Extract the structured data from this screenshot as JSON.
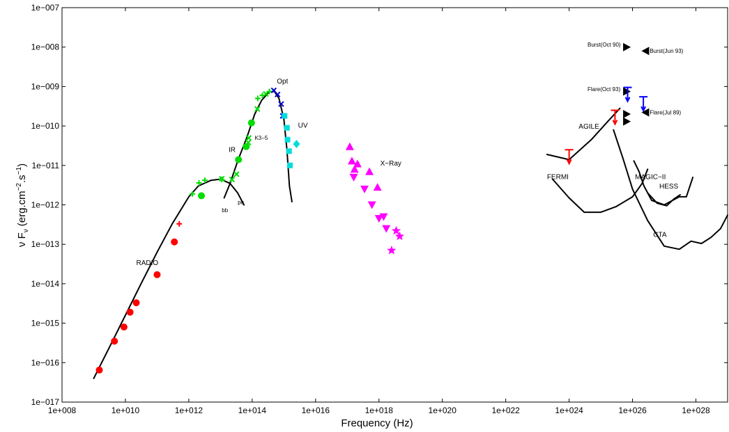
{
  "chart_data": {
    "type": "scatter",
    "title": "",
    "xlabel": "Frequency (Hz)",
    "ylabel": "ν F",
    "ylabel_sub": "ν",
    "ylabel_units": "(erg.cm",
    "ylabel_exp1": "−2",
    "ylabel_mid": ".s",
    "ylabel_exp2": "−1",
    "ylabel_end": ")",
    "x_scale": "log",
    "y_scale": "log",
    "xlim": [
      100000000.0,
      1e+29
    ],
    "ylim": [
      1e-17,
      1e-07
    ],
    "grid": false,
    "x_ticks": [
      {
        "v": 100000000.0,
        "label": "1e+008"
      },
      {
        "v": 10000000000.0,
        "label": "1e+010"
      },
      {
        "v": 1000000000000.0,
        "label": "1e+012"
      },
      {
        "v": 100000000000000.0,
        "label": "1e+014"
      },
      {
        "v": 1e+16,
        "label": "1e+016"
      },
      {
        "v": 1e+18,
        "label": "1e+018"
      },
      {
        "v": 1e+20,
        "label": "1e+020"
      },
      {
        "v": 1e+22,
        "label": "1e+022"
      },
      {
        "v": 1e+24,
        "label": "1e+024"
      },
      {
        "v": 1e+26,
        "label": "1e+026"
      },
      {
        "v": 1e+28,
        "label": "1e+028"
      }
    ],
    "y_ticks": [
      {
        "v": 1e-17,
        "label": "1e−017"
      },
      {
        "v": 1e-16,
        "label": "1e−016"
      },
      {
        "v": 1e-15,
        "label": "1e−015"
      },
      {
        "v": 1e-14,
        "label": "1e−014"
      },
      {
        "v": 1e-13,
        "label": "1e−013"
      },
      {
        "v": 1e-12,
        "label": "1e−012"
      },
      {
        "v": 1e-11,
        "label": "1e−011"
      },
      {
        "v": 1e-10,
        "label": "1e−010"
      },
      {
        "v": 1e-09,
        "label": "1e−009"
      },
      {
        "v": 1e-08,
        "label": "1e−008"
      },
      {
        "v": 1e-07,
        "label": "1e−007"
      }
    ],
    "series": [
      {
        "marker": "circle",
        "color": "#ff0000",
        "points": [
          [
            1500000000.0,
            6.5e-17
          ],
          [
            4500000000.0,
            3.5e-16
          ],
          [
            9000000000.0,
            8e-16
          ],
          [
            14000000000.0,
            1.9e-15
          ],
          [
            22000000000.0,
            3.3e-15
          ],
          [
            100000000000.0,
            1.7e-14
          ],
          [
            350000000000.0,
            1.15e-13
          ]
        ]
      },
      {
        "marker": "plus",
        "color": "#ff0000",
        "points": [
          [
            500000000000.0,
            3.3e-13
          ]
        ]
      },
      {
        "marker": "circle",
        "color": "#00dd00",
        "points": [
          [
            2500000000000.0,
            1.7e-12
          ],
          [
            37000000000000.0,
            1.4e-11
          ],
          [
            65000000000000.0,
            3e-11
          ],
          [
            95000000000000.0,
            1.2e-10
          ]
        ]
      },
      {
        "marker": "plus",
        "color": "#00dd00",
        "points": [
          [
            1300000000000.0,
            1.9e-12
          ],
          [
            2100000000000.0,
            3.6e-12
          ],
          [
            3200000000000.0,
            4.2e-12
          ],
          [
            11000000000000.0,
            4.4e-12
          ],
          [
            150000000000000.0,
            5e-10
          ],
          [
            210000000000000.0,
            6e-10
          ],
          [
            350000000000000.0,
            7.5e-10
          ]
        ]
      },
      {
        "marker": "x",
        "color": "#00dd00",
        "points": [
          [
            11000000000000.0,
            4.6e-12
          ],
          [
            23000000000000.0,
            4.4e-12
          ],
          [
            32000000000000.0,
            6e-12
          ],
          [
            75000000000000.0,
            3.8e-11
          ],
          [
            78000000000000.0,
            5e-11
          ],
          [
            95000000000000.0,
            1.2e-10
          ],
          [
            145000000000000.0,
            2.7e-10
          ],
          [
            270000000000000.0,
            6.5e-10
          ]
        ]
      },
      {
        "marker": "x",
        "color": "#0000cc",
        "points": [
          [
            480000000000000.0,
            8e-10
          ],
          [
            630000000000000.0,
            6.3e-10
          ],
          [
            820000000000000.0,
            3.6e-10
          ],
          [
            920000000000000.0,
            1.8e-10
          ]
        ]
      },
      {
        "marker": "square",
        "color": "#00dddd",
        "points": [
          [
            1050000000000000.0,
            1.8e-10
          ],
          [
            1250000000000000.0,
            9e-11
          ],
          [
            1300000000000000.0,
            4.5e-11
          ],
          [
            1450000000000000.0,
            2.3e-11
          ],
          [
            1550000000000000.0,
            1e-11
          ]
        ]
      },
      {
        "marker": "diamond",
        "color": "#00dddd",
        "points": [
          [
            2500000000000000.0,
            3.5e-11
          ]
        ]
      },
      {
        "marker": "triangle-up",
        "color": "#ff00ff",
        "points": [
          [
            1.2e+17,
            3e-11
          ],
          [
            1.4e+17,
            1.3e-11
          ],
          [
            1.7e+17,
            8e-12
          ],
          [
            2.1e+17,
            1.1e-11
          ],
          [
            5e+17,
            7e-12
          ],
          [
            9e+17,
            2.8e-12
          ]
        ]
      },
      {
        "marker": "triangle-down",
        "color": "#ff00ff",
        "points": [
          [
            1.6e+17,
            5e-12
          ],
          [
            3.5e+17,
            2.5e-12
          ],
          [
            6e+17,
            1e-12
          ],
          [
            1e+18,
            4.5e-13
          ],
          [
            1.4e+18,
            5e-13
          ],
          [
            1.7e+18,
            2.5e-13
          ]
        ]
      },
      {
        "marker": "star",
        "color": "#ff00ff",
        "points": [
          [
            2.5e+18,
            7e-14
          ],
          [
            3.5e+18,
            2.2e-13
          ],
          [
            4.5e+18,
            1.6e-13
          ]
        ]
      },
      {
        "marker": "triangle-right",
        "color": "#000000",
        "points": [
          [
            6.5e+25,
            1e-08
          ],
          [
            6.5e+25,
            7.5e-10
          ],
          [
            6.5e+25,
            2e-10
          ],
          [
            6.5e+25,
            1.3e-10
          ]
        ]
      },
      {
        "marker": "triangle-left",
        "color": "#000000",
        "points": [
          [
            2.6e+26,
            8e-09
          ],
          [
            2.6e+26,
            2.2e-10
          ]
        ]
      },
      {
        "marker": "upper-limit",
        "color": "#ff0000",
        "points": [
          [
            2.8e+25,
            2.5e-10
          ],
          [
            1e+24,
            2.5e-11
          ]
        ]
      },
      {
        "marker": "upper-limit",
        "color": "#0000ff",
        "points": [
          [
            7e+25,
            9.5e-10
          ],
          [
            2.2e+26,
            5.5e-10
          ]
        ]
      }
    ],
    "curves": [
      {
        "name": "synchrotron",
        "points": [
          [
            1000000000.0,
            4e-17
          ],
          [
            3000000000.0,
            2.3e-16
          ],
          [
            10000000000.0,
            1.6e-15
          ],
          [
            30000000000.0,
            9.5e-15
          ],
          [
            100000000000.0,
            6.3e-14
          ],
          [
            300000000000.0,
            3.3e-13
          ],
          [
            1000000000000.0,
            1.6e-12
          ],
          [
            2000000000000.0,
            3e-12
          ],
          [
            5000000000000.0,
            4.2e-12
          ],
          [
            10000000000000.0,
            4.5e-12
          ],
          [
            20000000000000.0,
            3.5e-12
          ],
          [
            35000000000000.0,
            2e-12
          ],
          [
            55000000000000.0,
            1e-12
          ]
        ]
      },
      {
        "name": "bb",
        "points": [
          [
            13000000000000.0,
            1.5e-12
          ],
          [
            20000000000000.0,
            3.5e-12
          ],
          [
            35000000000000.0,
            1.3e-11
          ],
          [
            70000000000000.0,
            5.5e-11
          ],
          [
            120000000000000.0,
            2e-10
          ],
          [
            200000000000000.0,
            4.5e-10
          ],
          [
            350000000000000.0,
            7.5e-10
          ],
          [
            500000000000000.0,
            7.5e-10
          ],
          [
            700000000000000.0,
            5e-10
          ],
          [
            1000000000000000.0,
            1.5e-10
          ],
          [
            1250000000000000.0,
            2.5e-11
          ],
          [
            1500000000000000.0,
            3e-12
          ],
          [
            1800000000000000.0,
            1.2e-12
          ]
        ]
      },
      {
        "name": "AGILE",
        "points": [
          [
            2e+23,
            1.9e-11
          ],
          [
            1e+24,
            1.4e-11
          ],
          [
            5e+24,
            4.5e-11
          ],
          [
            1.8e+25,
            1.4e-10
          ],
          [
            4e+25,
            2.8e-10
          ]
        ]
      },
      {
        "name": "FERMI",
        "points": [
          [
            3e+23,
            4.5e-12
          ],
          [
            1e+24,
            1.5e-12
          ],
          [
            3e+24,
            6.5e-13
          ],
          [
            1e+25,
            6.5e-13
          ],
          [
            3e+25,
            9e-13
          ],
          [
            1e+26,
            1.6e-12
          ],
          [
            2e+26,
            3.5e-12
          ],
          [
            3e+26,
            8e-12
          ]
        ]
      },
      {
        "name": "CTA",
        "points": [
          [
            2.5e+25,
            8e-11
          ],
          [
            5e+25,
            1.5e-11
          ],
          [
            1e+26,
            2.5e-12
          ],
          [
            3e+26,
            4e-13
          ],
          [
            1e+27,
            9e-14
          ],
          [
            3e+27,
            7.5e-14
          ],
          [
            7e+27,
            1.2e-13
          ],
          [
            1.5e+28,
            1.05e-13
          ],
          [
            3e+28,
            1.5e-13
          ],
          [
            6e+28,
            2.5e-13
          ],
          [
            1e+29,
            5.5e-13
          ]
        ]
      },
      {
        "name": "MAGIC-II",
        "points": [
          [
            1.1e+26,
            1.3e-11
          ],
          [
            1.6e+26,
            7e-12
          ],
          [
            2.3e+26,
            3e-12
          ],
          [
            4e+26,
            1.3e-12
          ],
          [
            1e+27,
            1e-12
          ],
          [
            3e+27,
            1.6e-12
          ],
          [
            5e+27,
            1.6e-12
          ],
          [
            8e+27,
            5e-12
          ]
        ]
      },
      {
        "name": "HESS",
        "points": [
          [
            3e+26,
            2e-12
          ],
          [
            6e+26,
            1.1e-12
          ],
          [
            1.2e+27,
            9.5e-13
          ],
          [
            2e+27,
            1.4e-12
          ],
          [
            3.2e+27,
            1.8e-12
          ]
        ]
      }
    ],
    "annotations": [
      {
        "text": "Opt",
        "x": 600000000000000.0,
        "y": 1.2e-09,
        "size": "normal"
      },
      {
        "text": "UV",
        "x": 2800000000000000.0,
        "y": 9e-11,
        "size": "normal"
      },
      {
        "text": "K3−5",
        "x": 120000000000000.0,
        "y": 4.5e-11,
        "size": "small"
      },
      {
        "text": "IR",
        "x": 18000000000000.0,
        "y": 2.2e-11,
        "size": "normal"
      },
      {
        "text": "X−Ray",
        "x": 1.1e+18,
        "y": 1e-11,
        "size": "normal"
      },
      {
        "text": "RADIO",
        "x": 22000000000.0,
        "y": 3e-14,
        "size": "normal"
      },
      {
        "text": "bb",
        "x": 11000000000000.0,
        "y": 6.5e-13,
        "size": "small"
      },
      {
        "text": "po",
        "x": 35000000000000.0,
        "y": 1.05e-12,
        "size": "small"
      },
      {
        "text": "AGILE",
        "x": 2e+24,
        "y": 8.5e-11,
        "size": "normal"
      },
      {
        "text": "FERMI",
        "x": 2e+23,
        "y": 4.5e-12,
        "size": "normal"
      },
      {
        "text": "MAGIC−II",
        "x": 1.2e+26,
        "y": 4.5e-12,
        "size": "normal"
      },
      {
        "text": "HESS",
        "x": 7e+26,
        "y": 2.6e-12,
        "size": "normal"
      },
      {
        "text": "CTA",
        "x": 4.5e+26,
        "y": 1.55e-13,
        "size": "normal"
      },
      {
        "text": "Burst(Oct 90)",
        "x": 3.8e+24,
        "y": 1.02e-08,
        "size": "small"
      },
      {
        "text": "Burst(Jun 93)",
        "x": 3.5e+26,
        "y": 7.2e-09,
        "size": "small"
      },
      {
        "text": "Flare(Oct 93)",
        "x": 3.8e+24,
        "y": 7.6e-10,
        "size": "small"
      },
      {
        "text": "Flare(Jul 89)",
        "x": 3.5e+26,
        "y": 1.95e-10,
        "size": "small"
      }
    ]
  }
}
